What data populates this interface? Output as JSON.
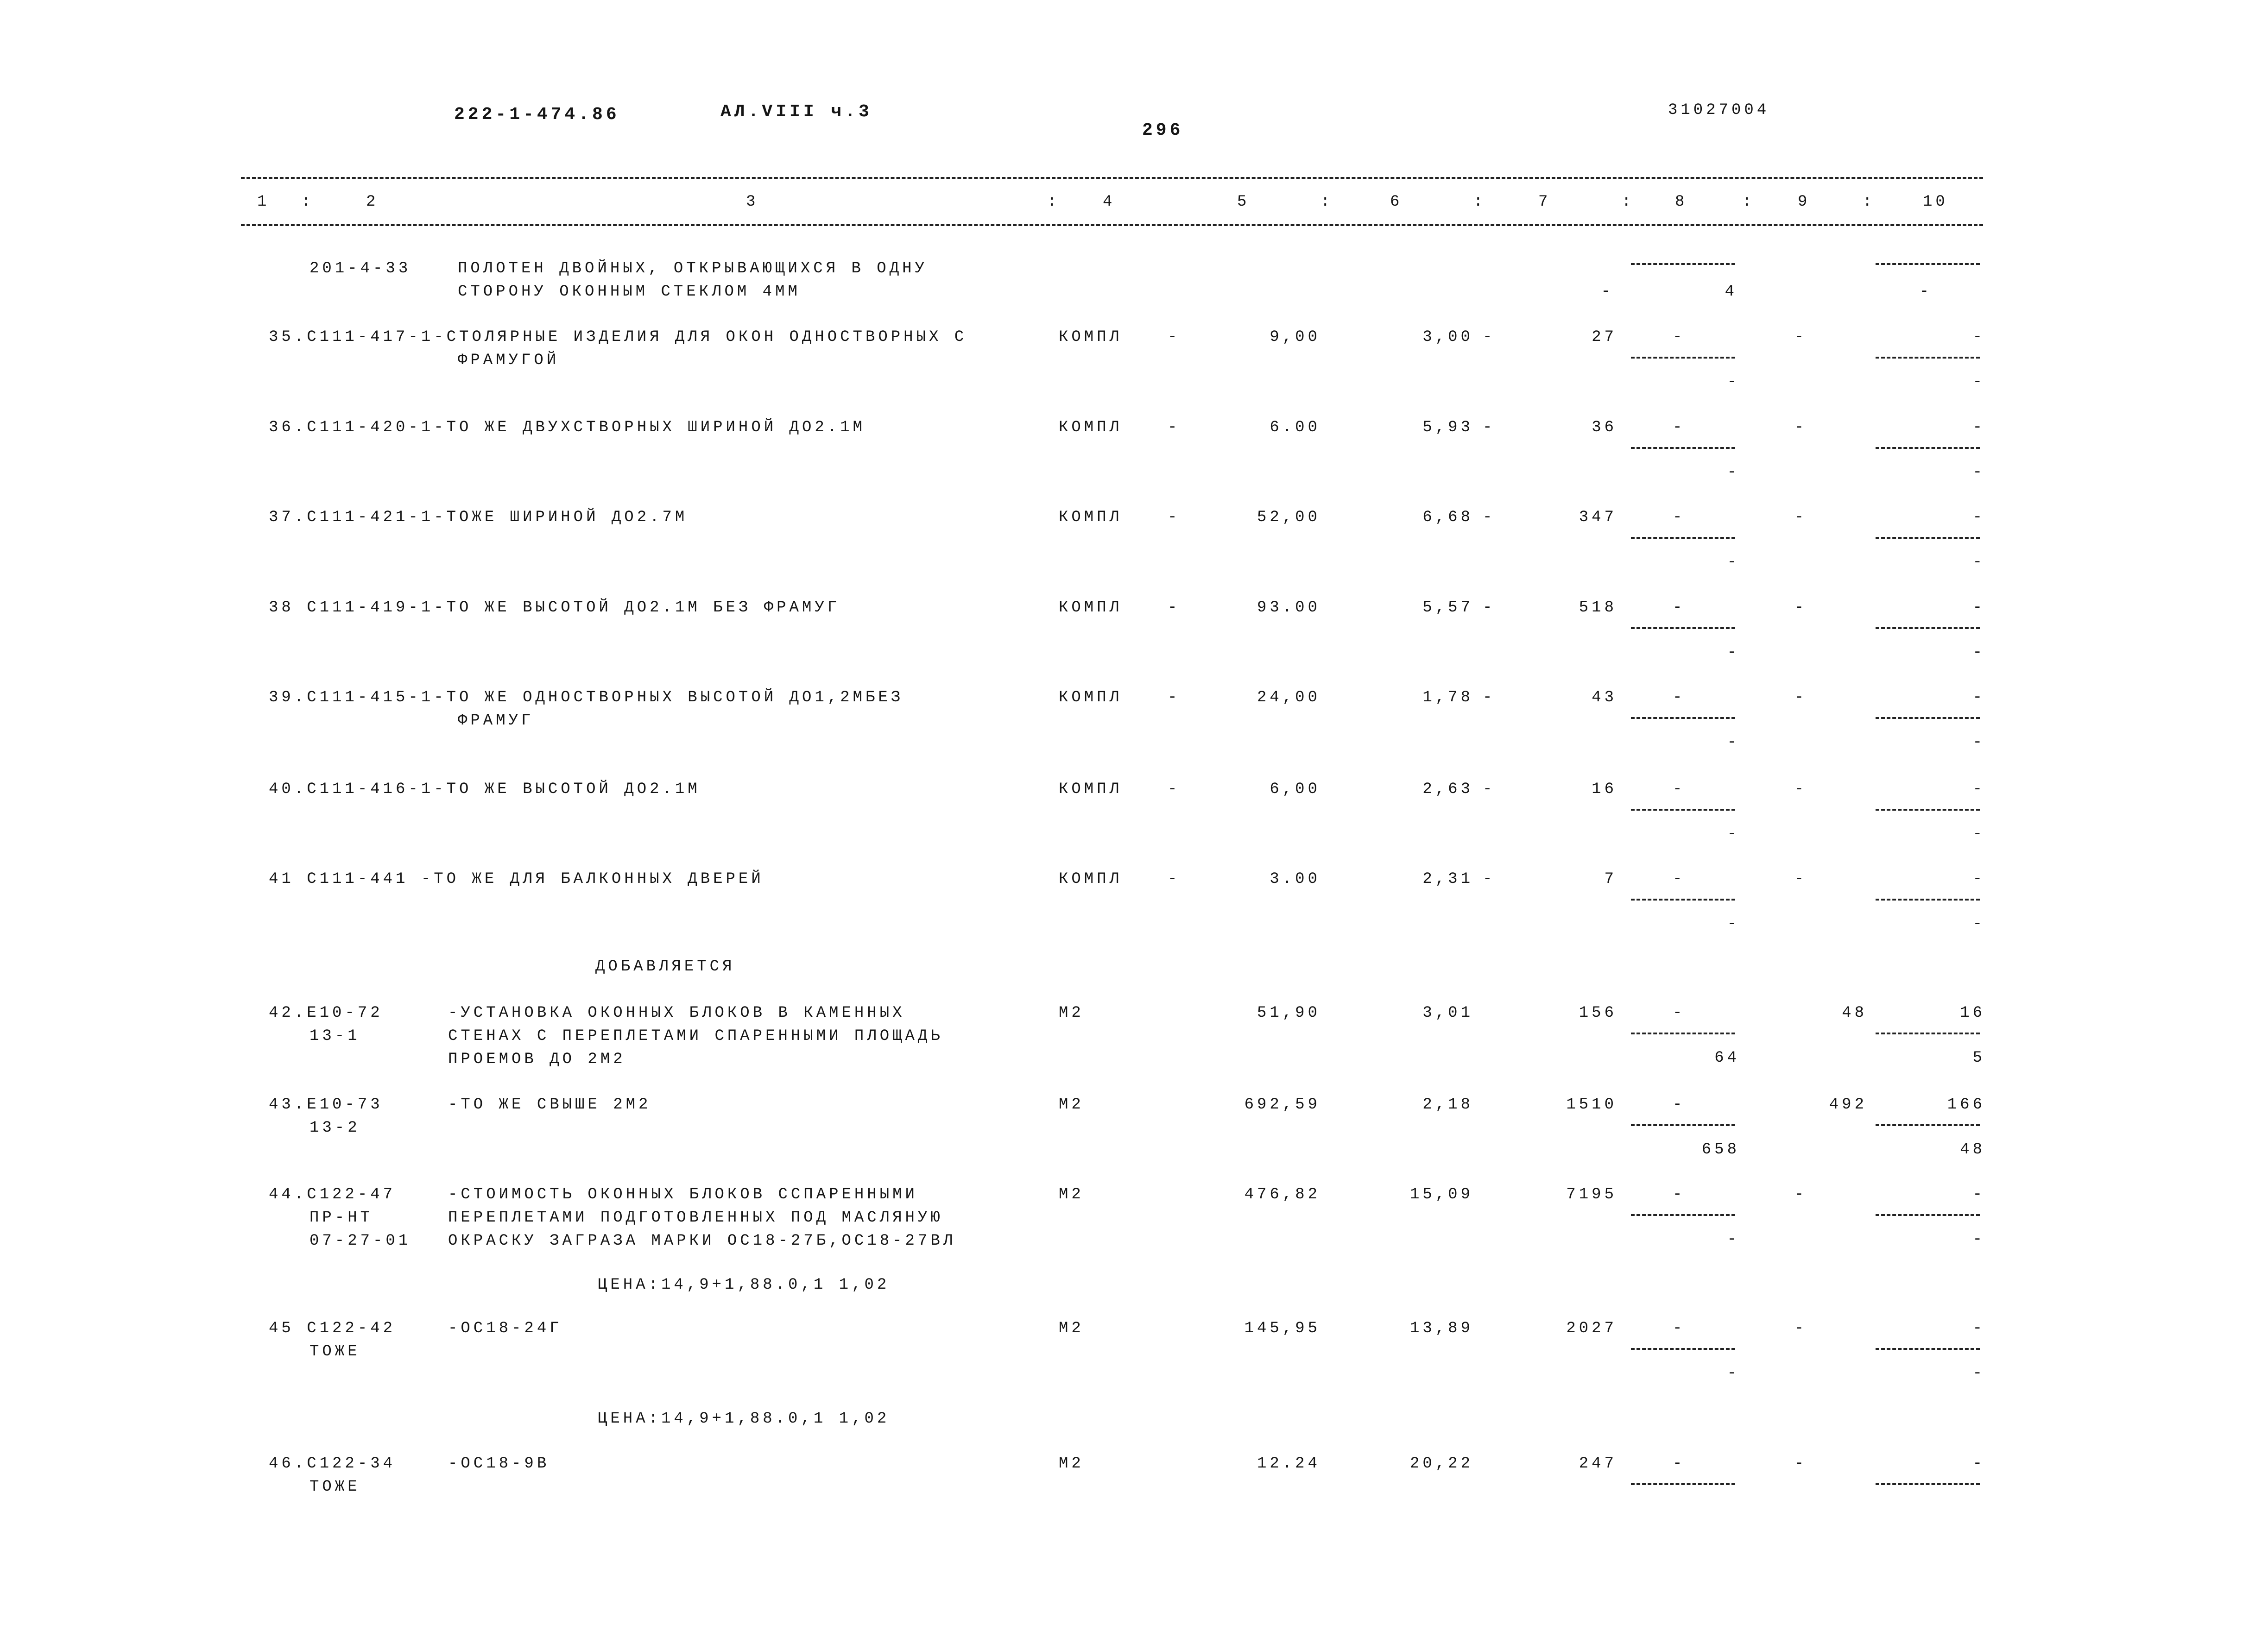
{
  "header": {
    "doc_code": "222-1-474.86",
    "album": "АЛ.VIII ч.3",
    "page_number": "296",
    "sheet_code": "31027004"
  },
  "columns": [
    "1",
    "2",
    "3",
    "4",
    "5",
    "6",
    "7",
    "8",
    "9",
    "10"
  ],
  "column_separator": ":",
  "rows": [
    {
      "code_lines": [
        "201-4-33"
      ],
      "first_line": "",
      "desc": [
        "ПОЛОТЕН ДВОЙНЫХ, ОТКРЫВАЮЩИХСЯ В ОДНУ",
        "СТОРОНУ ОКОННЫМ СТЕКЛОМ 4ММ"
      ],
      "unit": "",
      "c4": "",
      "qty": "",
      "price": "",
      "price_dash": "",
      "total": "-",
      "c8_top": "",
      "c8_bottom": "4",
      "c9": "",
      "c10_top": "",
      "c10_bottom": "-",
      "kind": "header"
    },
    {
      "code_lines": [],
      "first_line": "35.С111-417-1-СТОЛЯРНЫЕ ИЗДЕЛИЯ ДЛЯ ОКОН ОДНОСТВОРНЫХ С",
      "desc": [
        "ФРАМУГОЙ"
      ],
      "unit": "КОМПЛ",
      "c4": "-",
      "qty": "9,00",
      "price": "3,00",
      "price_dash": "-",
      "total": "27",
      "c8_top": "-",
      "c8_bottom": "-",
      "c9": "-",
      "c10_top": "-",
      "c10_bottom": "-"
    },
    {
      "code_lines": [],
      "first_line": "36.С111-420-1-ТО ЖЕ ДВУХСТВОРНЫХ ШИРИНОЙ ДО2.1М",
      "desc": [],
      "unit": "КОМПЛ",
      "c4": "-",
      "qty": "6.00",
      "price": "5,93",
      "price_dash": "-",
      "total": "36",
      "c8_top": "-",
      "c8_bottom": "-",
      "c9": "-",
      "c10_top": "-",
      "c10_bottom": "-"
    },
    {
      "code_lines": [],
      "first_line": "37.С111-421-1-ТОЖЕ ШИРИНОЙ ДО2.7М",
      "desc": [],
      "unit": "КОМПЛ",
      "c4": "-",
      "qty": "52,00",
      "price": "6,68",
      "price_dash": "-",
      "total": "347",
      "c8_top": "-",
      "c8_bottom": "-",
      "c9": "-",
      "c10_top": "-",
      "c10_bottom": "-"
    },
    {
      "code_lines": [],
      "first_line": "38 С111-419-1-ТО ЖЕ ВЫСОТОЙ ДО2.1М БЕЗ ФРАМУГ",
      "desc": [],
      "unit": "КОМПЛ",
      "c4": "-",
      "qty": "93.00",
      "price": "5,57",
      "price_dash": "-",
      "total": "518",
      "c8_top": "-",
      "c8_bottom": "-",
      "c9": "-",
      "c10_top": "-",
      "c10_bottom": "-"
    },
    {
      "code_lines": [],
      "first_line": "39.С111-415-1-ТО ЖЕ ОДНОСТВОРНЫХ ВЫСОТОЙ ДО1,2МБЕЗ",
      "desc": [
        "ФРАМУГ"
      ],
      "unit": "КОМПЛ",
      "c4": "-",
      "qty": "24,00",
      "price": "1,78",
      "price_dash": "-",
      "total": "43",
      "c8_top": "-",
      "c8_bottom": "-",
      "c9": "-",
      "c10_top": "-",
      "c10_bottom": "-"
    },
    {
      "code_lines": [],
      "first_line": "40.С111-416-1-ТО ЖЕ ВЫСОТОЙ ДО2.1М",
      "desc": [],
      "unit": "КОМПЛ",
      "c4": "-",
      "qty": "6,00",
      "price": "2,63",
      "price_dash": "-",
      "total": "16",
      "c8_top": "-",
      "c8_bottom": "-",
      "c9": "-",
      "c10_top": "-",
      "c10_bottom": "-"
    },
    {
      "code_lines": [],
      "first_line": "41 С111-441 -ТО ЖЕ ДЛЯ БАЛКОННЫХ ДВЕРЕЙ",
      "desc": [],
      "unit": "КОМПЛ",
      "c4": "-",
      "qty": "3.00",
      "price": "2,31",
      "price_dash": "-",
      "total": "7",
      "c8_top": "-",
      "c8_bottom": "-",
      "c9": "-",
      "c10_top": "-",
      "c10_bottom": "-"
    },
    {
      "kind": "section",
      "text": "ДОБАВЛЯЕТСЯ"
    },
    {
      "code_lines": [
        "42.Е10-72",
        "13-1"
      ],
      "first_line": "",
      "desc": [
        "-УСТАНОВКА ОКОННЫХ БЛОКОВ В КАМЕННЫХ",
        "СТЕНАХ С ПЕРЕПЛЕТАМИ СПАРЕННЫМИ ПЛОЩАДЬ",
        "ПРОЕМОВ ДО 2М2"
      ],
      "unit": "М2",
      "c4": "",
      "qty": "51,90",
      "price": "3,01",
      "price_dash": "",
      "total": "156",
      "c8_top": "-",
      "c8_bottom": "64",
      "c9": "48",
      "c10_top": "16",
      "c10_bottom": "5"
    },
    {
      "code_lines": [
        "43.Е10-73",
        "13-2"
      ],
      "first_line": "",
      "desc": [
        "-ТО ЖЕ СВЫШЕ 2М2"
      ],
      "unit": "М2",
      "c4": "",
      "qty": "692,59",
      "price": "2,18",
      "price_dash": "",
      "total": "1510",
      "c8_top": "-",
      "c8_bottom": "658",
      "c9": "492",
      "c10_top": "166",
      "c10_bottom": "48"
    },
    {
      "code_lines": [
        "44.С122-47",
        "ПР-НТ",
        "07-27-01"
      ],
      "first_line": "",
      "desc": [
        "-СТОИМОСТЬ ОКОННЫХ БЛОКОВ ССПАРЕННЫМИ",
        "ПЕРЕПЛЕТАМИ ПОДГОТОВЛЕННЫХ ПОД МАСЛЯНУЮ",
        "ОКРАСКУ ЗАГРАЗА МАРКИ ОС18-27Б,ОС18-27ВЛ"
      ],
      "unit": "М2",
      "c4": "",
      "qty": "476,82",
      "price": "15,09",
      "price_dash": "",
      "total": "7195",
      "c8_top": "-",
      "c8_bottom": "-",
      "c9": "-",
      "c10_top": "-",
      "c10_bottom": "-"
    },
    {
      "kind": "note",
      "text": "ЦЕНА:14,9+1,88.0,1 1,02"
    },
    {
      "code_lines": [
        "45 С122-42",
        "ТОЖЕ"
      ],
      "first_line": "",
      "desc": [
        "-ОС18-24Г"
      ],
      "unit": "М2",
      "c4": "",
      "qty": "145,95",
      "price": "13,89",
      "price_dash": "",
      "total": "2027",
      "c8_top": "-",
      "c8_bottom": "-",
      "c9": "-",
      "c10_top": "-",
      "c10_bottom": "-"
    },
    {
      "kind": "note",
      "text": "ЦЕНА:14,9+1,88.0,1 1,02"
    },
    {
      "code_lines": [
        "46.С122-34",
        "ТОЖЕ"
      ],
      "first_line": "",
      "desc": [
        "-ОС18-9В"
      ],
      "unit": "М2",
      "c4": "",
      "qty": "12.24",
      "price": "20,22",
      "price_dash": "",
      "total": "247",
      "c8_top": "-",
      "c8_bottom": "",
      "c9": "-",
      "c10_top": "-",
      "c10_bottom": ""
    }
  ]
}
